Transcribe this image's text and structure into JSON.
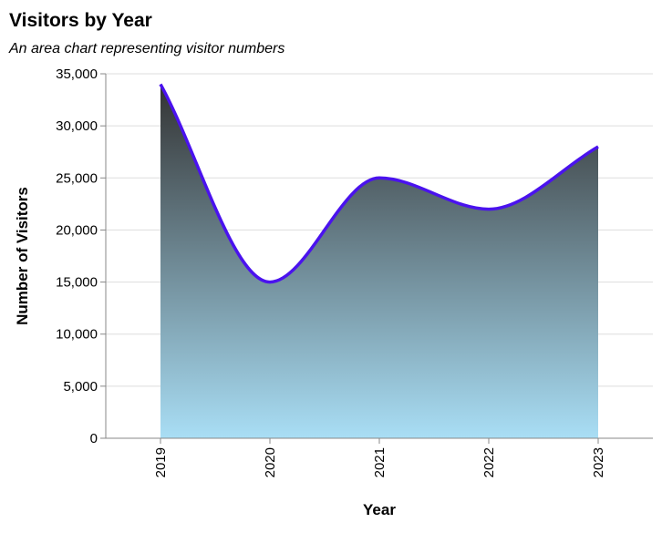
{
  "chart_data": {
    "type": "area",
    "title": "Visitors by Year",
    "subtitle": "An area chart representing visitor numbers",
    "xlabel": "Year",
    "ylabel": "Number of Visitors",
    "categories": [
      "2019",
      "2020",
      "2021",
      "2022",
      "2023"
    ],
    "values": [
      34000,
      15000,
      25000,
      22000,
      28000
    ],
    "ylim": [
      0,
      35000
    ],
    "yticks": [
      0,
      5000,
      10000,
      15000,
      20000,
      25000,
      30000,
      35000
    ],
    "ytick_labels": [
      "0",
      "5,000",
      "10,000",
      "15,000",
      "20,000",
      "25,000",
      "30,000",
      "35,000"
    ],
    "grid": true,
    "colors": {
      "line": "#4a12ee",
      "fill_top": "#333333",
      "fill_bottom": "#a9def5",
      "grid": "#dddddd",
      "axis": "#888888"
    }
  }
}
